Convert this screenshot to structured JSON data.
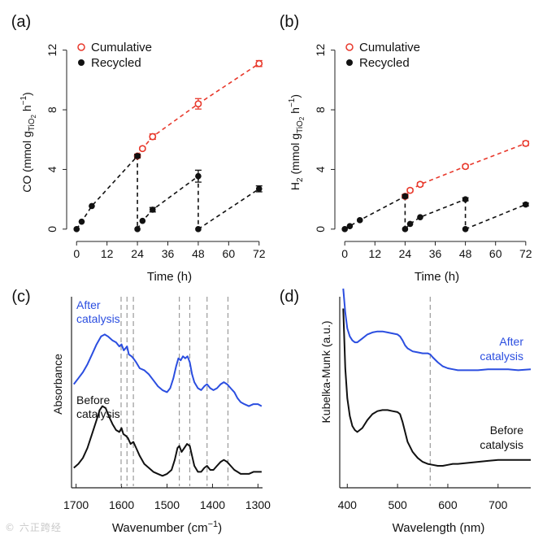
{
  "watermark": "© 六正跨经",
  "chart_data": [
    {
      "panel": "(a)",
      "type": "scatter",
      "xlabel": "Time (h)",
      "ylabel_main": "CO (mmol g",
      "ylabel_sub": "TiO",
      "ylabel_sub2": "2",
      "ylabel_tail": " h",
      "ylabel_sup": "−1",
      "ylabel_end": ")",
      "xlim": [
        -2,
        74
      ],
      "ylim": [
        -0.5,
        12.8
      ],
      "xticks": [
        0,
        12,
        24,
        36,
        48,
        60,
        72
      ],
      "yticks": [
        0,
        4,
        8,
        12
      ],
      "legend": {
        "cumulative": "Cumulative",
        "recycled": "Recycled"
      },
      "cumulative": [
        {
          "x": 24,
          "y": 4.9,
          "err": 0.12
        },
        {
          "x": 26,
          "y": 5.4,
          "err": 0.1
        },
        {
          "x": 30,
          "y": 6.2,
          "err": 0.18
        },
        {
          "x": 48,
          "y": 8.4,
          "err": 0.35
        },
        {
          "x": 72,
          "y": 11.1,
          "err": 0.2
        }
      ],
      "recycled": [
        [
          {
            "x": 0,
            "y": 0
          },
          {
            "x": 2,
            "y": 0.5
          },
          {
            "x": 6,
            "y": 1.55
          },
          {
            "x": 24,
            "y": 4.9,
            "err": 0.12
          }
        ],
        [
          {
            "x": 24,
            "y": 0
          },
          {
            "x": 26,
            "y": 0.55
          },
          {
            "x": 30,
            "y": 1.3,
            "err": 0.15
          },
          {
            "x": 48,
            "y": 3.55,
            "err": 0.4
          }
        ],
        [
          {
            "x": 48,
            "y": 0
          },
          {
            "x": 72,
            "y": 2.7,
            "err": 0.2
          }
        ]
      ]
    },
    {
      "panel": "(b)",
      "type": "scatter",
      "xlabel": "Time (h)",
      "ylabel_main": "H",
      "ylabel_sub0": "2",
      "ylabel_mid": " (mmol g",
      "ylabel_sub": "TiO",
      "ylabel_sub2": "2",
      "ylabel_tail": " h",
      "ylabel_sup": "−1",
      "ylabel_end": ")",
      "xlim": [
        -2,
        74
      ],
      "ylim": [
        -0.5,
        12.8
      ],
      "xticks": [
        0,
        12,
        24,
        36,
        48,
        60,
        72
      ],
      "yticks": [
        0,
        4,
        8,
        12
      ],
      "legend": {
        "cumulative": "Cumulative",
        "recycled": "Recycled"
      },
      "cumulative": [
        {
          "x": 24,
          "y": 2.2,
          "err": 0.1
        },
        {
          "x": 26,
          "y": 2.6,
          "err": 0.1
        },
        {
          "x": 30,
          "y": 3.0,
          "err": 0.12
        },
        {
          "x": 48,
          "y": 4.2,
          "err": 0.12
        },
        {
          "x": 72,
          "y": 5.75,
          "err": 0.15
        }
      ],
      "recycled": [
        [
          {
            "x": 0,
            "y": 0
          },
          {
            "x": 2,
            "y": 0.2
          },
          {
            "x": 6,
            "y": 0.6
          },
          {
            "x": 24,
            "y": 2.2,
            "err": 0.12
          }
        ],
        [
          {
            "x": 24,
            "y": 0
          },
          {
            "x": 26,
            "y": 0.35
          },
          {
            "x": 30,
            "y": 0.8
          },
          {
            "x": 48,
            "y": 2.0,
            "err": 0.1
          }
        ],
        [
          {
            "x": 48,
            "y": 0
          },
          {
            "x": 72,
            "y": 1.65,
            "err": 0.1
          }
        ]
      ]
    },
    {
      "panel": "(c)",
      "type": "line",
      "xlabel": "Wavenumber (cm",
      "xlabel_sup": "−1",
      "xlabel_end": ")",
      "ylabel": "Absorbance",
      "xlim": [
        1710,
        1290
      ],
      "xticks": [
        1700,
        1600,
        1500,
        1400,
        1300
      ],
      "dashed_lines": [
        1601,
        1588,
        1574,
        1473,
        1450,
        1412,
        1366
      ],
      "series": [
        {
          "name": "After catalysis",
          "label_lines": [
            "After",
            "catalysis"
          ],
          "color": "#2b4ee0",
          "points": [
            [
              1705,
              0.52
            ],
            [
              1695,
              0.55
            ],
            [
              1685,
              0.58
            ],
            [
              1675,
              0.62
            ],
            [
              1665,
              0.67
            ],
            [
              1655,
              0.72
            ],
            [
              1645,
              0.76
            ],
            [
              1637,
              0.77
            ],
            [
              1630,
              0.76
            ],
            [
              1620,
              0.74
            ],
            [
              1612,
              0.73
            ],
            [
              1605,
              0.71
            ],
            [
              1600,
              0.72
            ],
            [
              1595,
              0.69
            ],
            [
              1588,
              0.71
            ],
            [
              1584,
              0.67
            ],
            [
              1578,
              0.66
            ],
            [
              1574,
              0.65
            ],
            [
              1568,
              0.63
            ],
            [
              1560,
              0.6
            ],
            [
              1550,
              0.59
            ],
            [
              1540,
              0.57
            ],
            [
              1530,
              0.54
            ],
            [
              1520,
              0.51
            ],
            [
              1510,
              0.49
            ],
            [
              1500,
              0.48
            ],
            [
              1493,
              0.5
            ],
            [
              1486,
              0.55
            ],
            [
              1480,
              0.61
            ],
            [
              1475,
              0.65
            ],
            [
              1470,
              0.64
            ],
            [
              1465,
              0.66
            ],
            [
              1460,
              0.65
            ],
            [
              1455,
              0.66
            ],
            [
              1450,
              0.63
            ],
            [
              1445,
              0.57
            ],
            [
              1440,
              0.53
            ],
            [
              1432,
              0.5
            ],
            [
              1425,
              0.49
            ],
            [
              1418,
              0.51
            ],
            [
              1412,
              0.52
            ],
            [
              1405,
              0.5
            ],
            [
              1398,
              0.49
            ],
            [
              1390,
              0.5
            ],
            [
              1382,
              0.52
            ],
            [
              1375,
              0.53
            ],
            [
              1368,
              0.52
            ],
            [
              1360,
              0.5
            ],
            [
              1352,
              0.48
            ],
            [
              1345,
              0.45
            ],
            [
              1338,
              0.43
            ],
            [
              1330,
              0.42
            ],
            [
              1320,
              0.41
            ],
            [
              1310,
              0.42
            ],
            [
              1300,
              0.42
            ],
            [
              1292,
              0.41
            ]
          ]
        },
        {
          "name": "Before catalysis",
          "label_lines": [
            "Before",
            "catalysis"
          ],
          "color": "#111111",
          "points": [
            [
              1705,
              0.1
            ],
            [
              1695,
              0.12
            ],
            [
              1685,
              0.15
            ],
            [
              1675,
              0.2
            ],
            [
              1665,
              0.27
            ],
            [
              1655,
              0.34
            ],
            [
              1648,
              0.39
            ],
            [
              1642,
              0.41
            ],
            [
              1635,
              0.4
            ],
            [
              1628,
              0.36
            ],
            [
              1620,
              0.32
            ],
            [
              1612,
              0.29
            ],
            [
              1605,
              0.28
            ],
            [
              1600,
              0.3
            ],
            [
              1596,
              0.27
            ],
            [
              1590,
              0.26
            ],
            [
              1586,
              0.25
            ],
            [
              1580,
              0.22
            ],
            [
              1574,
              0.23
            ],
            [
              1568,
              0.2
            ],
            [
              1560,
              0.16
            ],
            [
              1550,
              0.12
            ],
            [
              1540,
              0.1
            ],
            [
              1530,
              0.08
            ],
            [
              1520,
              0.07
            ],
            [
              1510,
              0.06
            ],
            [
              1500,
              0.07
            ],
            [
              1490,
              0.09
            ],
            [
              1483,
              0.14
            ],
            [
              1477,
              0.2
            ],
            [
              1473,
              0.21
            ],
            [
              1468,
              0.18
            ],
            [
              1462,
              0.2
            ],
            [
              1456,
              0.22
            ],
            [
              1450,
              0.21
            ],
            [
              1445,
              0.16
            ],
            [
              1440,
              0.11
            ],
            [
              1432,
              0.08
            ],
            [
              1425,
              0.08
            ],
            [
              1418,
              0.1
            ],
            [
              1412,
              0.11
            ],
            [
              1405,
              0.09
            ],
            [
              1398,
              0.09
            ],
            [
              1390,
              0.11
            ],
            [
              1382,
              0.13
            ],
            [
              1375,
              0.14
            ],
            [
              1368,
              0.13
            ],
            [
              1360,
              0.11
            ],
            [
              1352,
              0.09
            ],
            [
              1345,
              0.08
            ],
            [
              1338,
              0.07
            ],
            [
              1330,
              0.07
            ],
            [
              1320,
              0.07
            ],
            [
              1310,
              0.08
            ],
            [
              1300,
              0.08
            ],
            [
              1292,
              0.08
            ]
          ]
        }
      ]
    },
    {
      "panel": "(d)",
      "type": "line",
      "xlabel": "Wavelength (nm)",
      "ylabel": "Kubelka-Munk (a.u.)",
      "xlim": [
        385,
        765
      ],
      "xticks": [
        400,
        500,
        600,
        700
      ],
      "dashed_lines": [
        565
      ],
      "series": [
        {
          "name": "After catalysis",
          "label_lines": [
            "After",
            "catalysis"
          ],
          "color": "#2b4ee0",
          "points": [
            [
              392,
              1.0
            ],
            [
              396,
              0.88
            ],
            [
              400,
              0.8
            ],
            [
              405,
              0.76
            ],
            [
              410,
              0.74
            ],
            [
              415,
              0.73
            ],
            [
              420,
              0.73
            ],
            [
              430,
              0.75
            ],
            [
              440,
              0.77
            ],
            [
              450,
              0.78
            ],
            [
              460,
              0.785
            ],
            [
              470,
              0.785
            ],
            [
              480,
              0.78
            ],
            [
              490,
              0.775
            ],
            [
              500,
              0.77
            ],
            [
              505,
              0.76
            ],
            [
              510,
              0.74
            ],
            [
              515,
              0.715
            ],
            [
              520,
              0.7
            ],
            [
              530,
              0.685
            ],
            [
              540,
              0.68
            ],
            [
              550,
              0.675
            ],
            [
              560,
              0.675
            ],
            [
              565,
              0.67
            ],
            [
              570,
              0.655
            ],
            [
              580,
              0.63
            ],
            [
              590,
              0.61
            ],
            [
              600,
              0.6
            ],
            [
              610,
              0.595
            ],
            [
              620,
              0.59
            ],
            [
              640,
              0.59
            ],
            [
              660,
              0.59
            ],
            [
              680,
              0.595
            ],
            [
              700,
              0.595
            ],
            [
              720,
              0.595
            ],
            [
              740,
              0.59
            ],
            [
              765,
              0.595
            ]
          ]
        },
        {
          "name": "Before catalysis",
          "label_lines": [
            "Before",
            "catalysis"
          ],
          "color": "#111111",
          "points": [
            [
              392,
              0.9
            ],
            [
              396,
              0.6
            ],
            [
              400,
              0.45
            ],
            [
              405,
              0.36
            ],
            [
              410,
              0.31
            ],
            [
              415,
              0.29
            ],
            [
              420,
              0.28
            ],
            [
              430,
              0.3
            ],
            [
              440,
              0.34
            ],
            [
              450,
              0.37
            ],
            [
              460,
              0.385
            ],
            [
              470,
              0.39
            ],
            [
              480,
              0.39
            ],
            [
              490,
              0.385
            ],
            [
              500,
              0.38
            ],
            [
              505,
              0.37
            ],
            [
              510,
              0.33
            ],
            [
              515,
              0.28
            ],
            [
              520,
              0.23
            ],
            [
              530,
              0.18
            ],
            [
              540,
              0.15
            ],
            [
              550,
              0.13
            ],
            [
              560,
              0.12
            ],
            [
              570,
              0.115
            ],
            [
              580,
              0.11
            ],
            [
              590,
              0.11
            ],
            [
              600,
              0.115
            ],
            [
              610,
              0.12
            ],
            [
              620,
              0.12
            ],
            [
              640,
              0.125
            ],
            [
              660,
              0.13
            ],
            [
              680,
              0.135
            ],
            [
              700,
              0.14
            ],
            [
              720,
              0.14
            ],
            [
              740,
              0.14
            ],
            [
              765,
              0.14
            ]
          ]
        }
      ]
    }
  ]
}
